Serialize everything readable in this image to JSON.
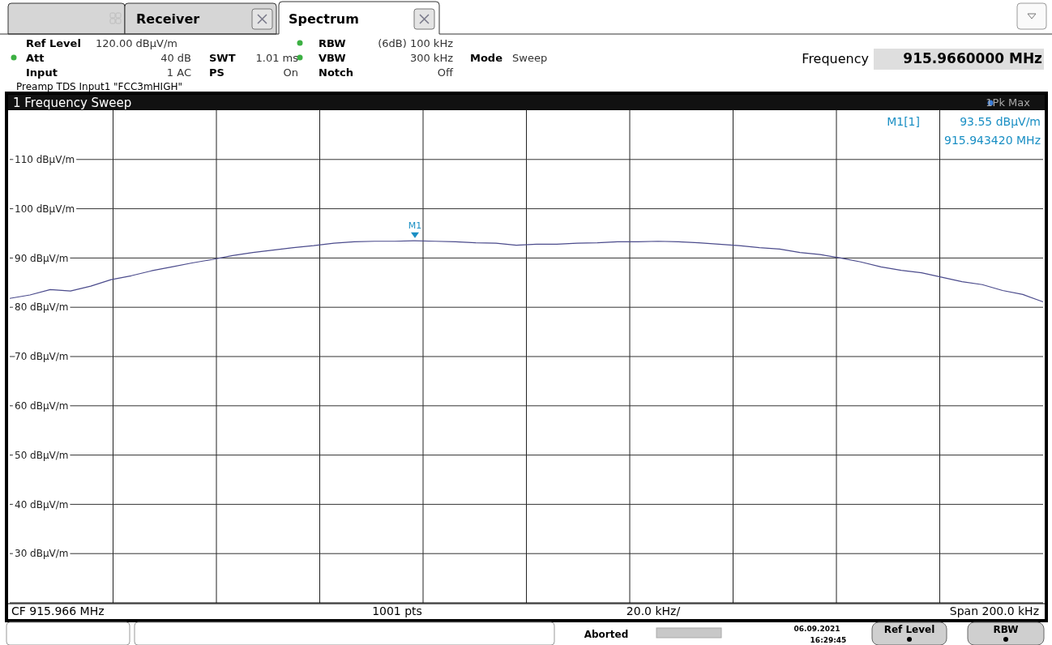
{
  "chart_data": {
    "type": "line",
    "title": "1 Frequency Sweep",
    "categories": [
      null,
      null,
      null,
      null,
      null,
      null,
      null,
      null,
      null,
      null,
      null,
      null,
      null,
      null,
      null,
      null,
      null,
      null,
      null,
      null,
      null,
      null,
      null,
      null,
      null,
      null,
      null,
      null,
      null,
      null,
      null,
      null,
      null,
      null,
      null,
      null,
      null,
      null,
      null,
      null,
      null,
      null,
      null,
      null,
      null,
      null,
      null,
      null,
      null,
      null,
      null,
      null
    ],
    "series": [
      {
        "color": "#4b4b8c",
        "values": [
          81.8,
          82.5,
          83.6,
          83.3,
          84.3,
          85.6,
          86.4,
          87.4,
          88.2,
          89.0,
          89.7,
          90.5,
          91.1,
          91.6,
          92.1,
          92.5,
          93.0,
          93.3,
          93.4,
          93.4,
          93.5,
          93.4,
          93.3,
          93.1,
          93.0,
          92.6,
          92.8,
          92.8,
          93.0,
          93.1,
          93.3,
          93.3,
          93.4,
          93.3,
          93.1,
          92.8,
          92.5,
          92.1,
          91.8,
          91.1,
          90.7,
          90.0,
          89.2,
          88.2,
          87.5,
          87.0,
          86.1,
          85.2,
          84.6,
          83.4,
          82.6,
          81.1
        ]
      }
    ],
    "ylim": [
      20,
      120
    ],
    "yticks": [
      {
        "value": 30,
        "label": "30 dBµV/m"
      },
      {
        "value": 40,
        "label": "40 dBµV/m"
      },
      {
        "value": 50,
        "label": "50 dBµV/m"
      },
      {
        "value": 60,
        "label": "60 dBµV/m"
      },
      {
        "value": 70,
        "label": "70 dBµV/m"
      },
      {
        "value": 80,
        "label": "80 dBµV/m"
      },
      {
        "value": 90,
        "label": "90 dBµV/m"
      },
      {
        "value": 100,
        "label": "100 dBµV/m"
      },
      {
        "value": 110,
        "label": "110 dBµV/m"
      }
    ],
    "grid": true,
    "marker": "none",
    "line_style": "solid",
    "annotations": [
      "Receiver",
      "Spectrum",
      "Ref Level",
      "120.00 dBµV/m",
      "Att",
      "40 dB",
      "Input",
      "1 AC",
      "SWT",
      "1.01 ms",
      "PS",
      "On",
      "RBW",
      "(6dB) 100 kHz",
      "VBW",
      "300 kHz",
      "Notch",
      "Off",
      "Mode",
      "Sweep",
      "Frequency",
      "915.9660000 MHz",
      "Preamp TDS Input1 \"FCC3mHIGH\"",
      "1Pk Max",
      "M1[1]",
      "93.55 dBµV/m",
      "915.943420 MHz",
      "CF 915.966 MHz",
      "1001 pts",
      "20.0 kHz/",
      "Span 200.0 kHz",
      "Aborted",
      "06.09.2021",
      "16:29:45",
      "Ref Level",
      "RBW",
      {
        "text": "M1",
        "y": 93.55
      }
    ]
  }
}
